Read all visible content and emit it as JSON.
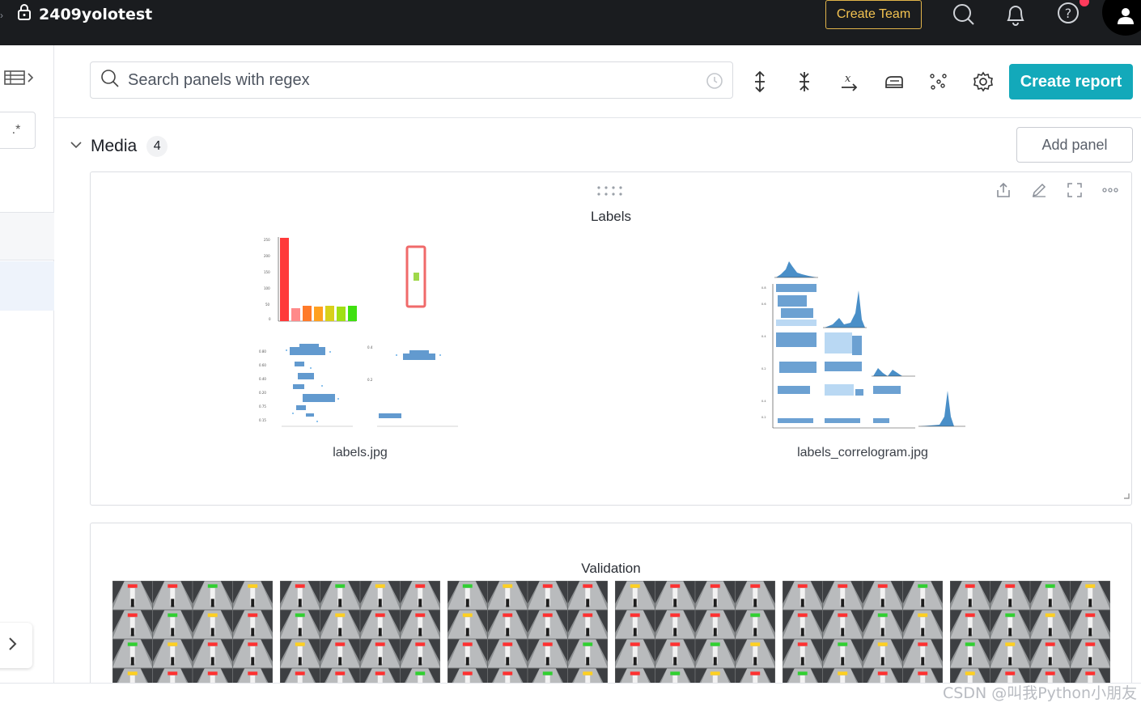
{
  "header": {
    "project_name": "2409yolotest",
    "create_team_label": "Create Team",
    "icons": [
      "lock-icon",
      "search-icon",
      "bell-icon",
      "help-icon",
      "user-icon"
    ]
  },
  "search": {
    "placeholder": "Search panels with regex"
  },
  "toolbar": {
    "create_report_label": "Create report",
    "icons": [
      "expand-vertical-icon",
      "collapse-vertical-icon",
      "x-axis-icon",
      "smoothing-icon",
      "outliers-icon",
      "settings-icon"
    ]
  },
  "sidebar": {
    "regex_label": ".*"
  },
  "section": {
    "title": "Media",
    "count": "4",
    "add_panel_label": "Add panel"
  },
  "panels": {
    "labels": {
      "title": "Labels",
      "images": [
        {
          "caption": "labels.jpg"
        },
        {
          "caption": "labels_correlogram.jpg"
        }
      ]
    },
    "validation": {
      "title": "Validation",
      "thumb_count": 6
    }
  },
  "watermark": "CSDN @叫我Python小朋友",
  "colors": {
    "topbar": "#1a1c1f",
    "accent": "#13a9ba",
    "create_team": "#f5c451"
  }
}
